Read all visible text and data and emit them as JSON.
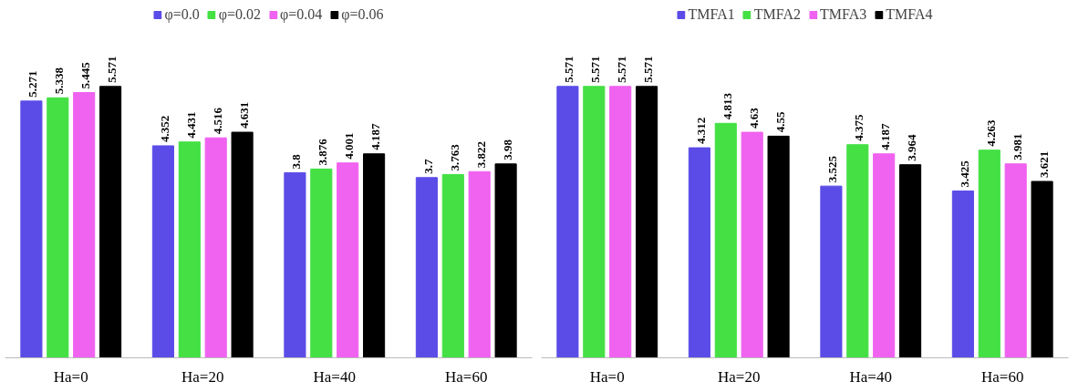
{
  "chart_data": [
    {
      "type": "bar",
      "categories": [
        "Ha=0",
        "Ha=20",
        "Ha=40",
        "Ha=60"
      ],
      "data_labels": true,
      "legend": "top",
      "grid": false,
      "tick_labels": "x",
      "series": [
        {
          "name": "φ=0.0",
          "color": "#5b4ce8",
          "values": [
            5.271,
            4.352,
            3.8,
            3.7
          ]
        },
        {
          "name": "φ=0.02",
          "color": "#44e044",
          "values": [
            5.338,
            4.431,
            3.876,
            3.763
          ]
        },
        {
          "name": "φ=0.04",
          "color": "#f062f0",
          "values": [
            5.445,
            4.516,
            4.001,
            3.822
          ]
        },
        {
          "name": "φ=0.06",
          "color": "#000000",
          "values": [
            5.571,
            4.631,
            4.187,
            3.98
          ]
        }
      ]
    },
    {
      "type": "bar",
      "categories": [
        "Ha=0",
        "Ha=20",
        "Ha=40",
        "Ha=60"
      ],
      "data_labels": true,
      "legend": "top",
      "grid": false,
      "tick_labels": "x",
      "series": [
        {
          "name": "TMFA1",
          "color": "#5b4ce8",
          "values": [
            5.571,
            4.312,
            3.525,
            3.425
          ]
        },
        {
          "name": "TMFA2",
          "color": "#44e044",
          "values": [
            5.571,
            4.813,
            4.375,
            4.263
          ]
        },
        {
          "name": "TMFA3",
          "color": "#f062f0",
          "values": [
            5.571,
            4.63,
            4.187,
            3.981
          ]
        },
        {
          "name": "TMFA4",
          "color": "#000000",
          "values": [
            5.571,
            4.55,
            3.964,
            3.621
          ]
        }
      ]
    }
  ]
}
